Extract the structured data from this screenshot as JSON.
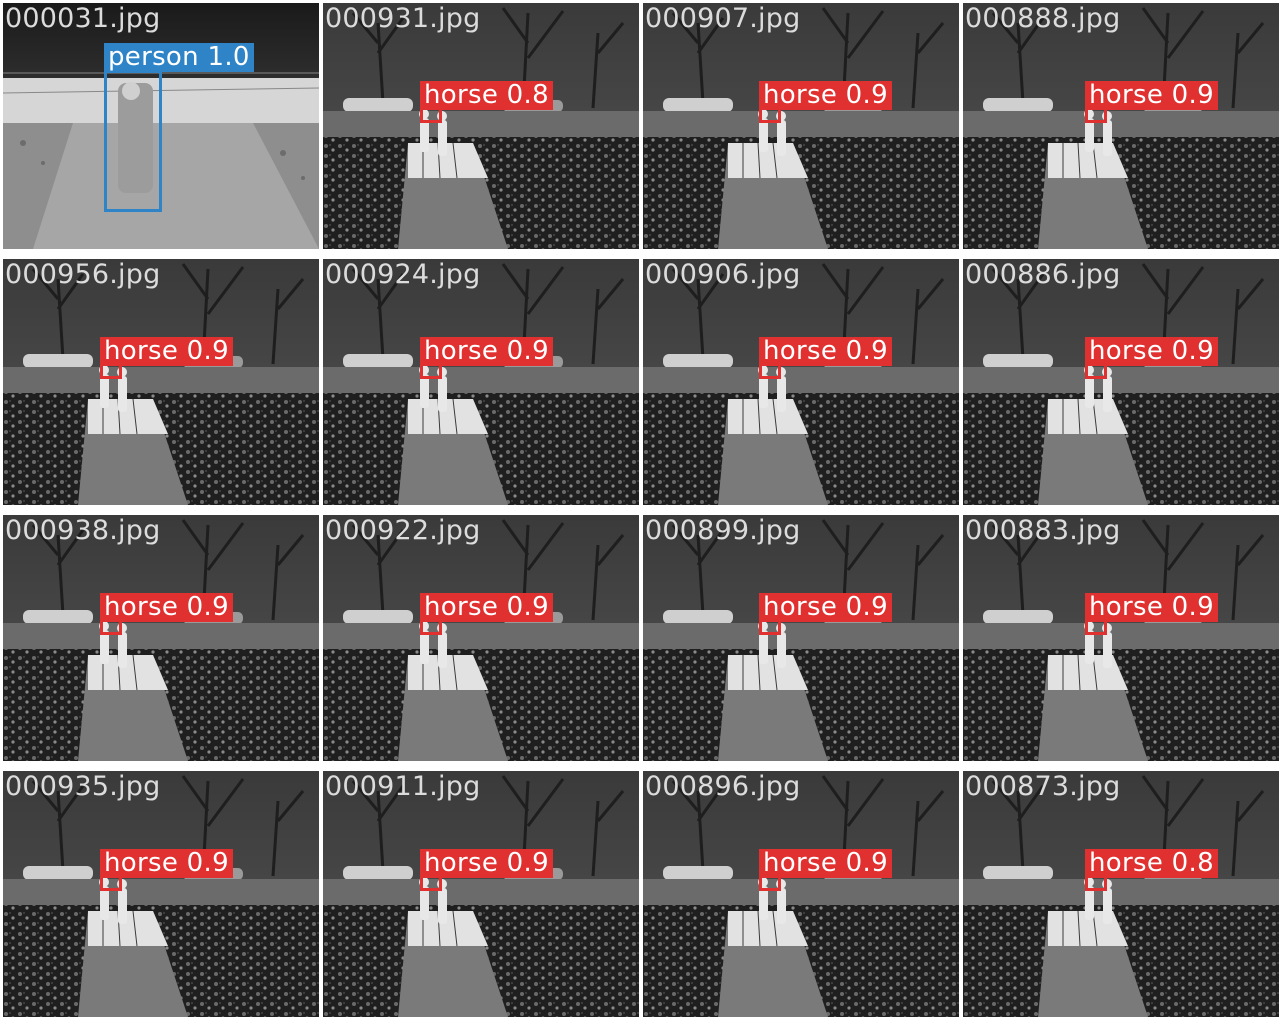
{
  "tiles": [
    {
      "file": "000031.jpg",
      "label": "person 1.0",
      "cls": "person",
      "scene": "night"
    },
    {
      "file": "000931.jpg",
      "label": "horse 0.8",
      "cls": "horse",
      "scene": "walkway",
      "people_x": 0.32
    },
    {
      "file": "000907.jpg",
      "label": "horse 0.9",
      "cls": "horse",
      "scene": "walkway",
      "people_x": 0.38
    },
    {
      "file": "000888.jpg",
      "label": "horse 0.9",
      "cls": "horse",
      "scene": "walkway",
      "people_x": 0.4
    },
    {
      "file": "000956.jpg",
      "label": "horse 0.9",
      "cls": "horse",
      "scene": "walkway",
      "people_x": 0.32
    },
    {
      "file": "000924.jpg",
      "label": "horse 0.9",
      "cls": "horse",
      "scene": "walkway",
      "people_x": 0.32
    },
    {
      "file": "000906.jpg",
      "label": "horse 0.9",
      "cls": "horse",
      "scene": "walkway",
      "people_x": 0.38
    },
    {
      "file": "000886.jpg",
      "label": "horse 0.9",
      "cls": "horse",
      "scene": "walkway",
      "people_x": 0.4
    },
    {
      "file": "000938.jpg",
      "label": "horse 0.9",
      "cls": "horse",
      "scene": "walkway",
      "people_x": 0.32
    },
    {
      "file": "000922.jpg",
      "label": "horse 0.9",
      "cls": "horse",
      "scene": "walkway",
      "people_x": 0.32
    },
    {
      "file": "000899.jpg",
      "label": "horse 0.9",
      "cls": "horse",
      "scene": "walkway",
      "people_x": 0.38
    },
    {
      "file": "000883.jpg",
      "label": "horse 0.9",
      "cls": "horse",
      "scene": "walkway",
      "people_x": 0.4
    },
    {
      "file": "000935.jpg",
      "label": "horse 0.9",
      "cls": "horse",
      "scene": "walkway",
      "people_x": 0.32
    },
    {
      "file": "000911.jpg",
      "label": "horse 0.9",
      "cls": "horse",
      "scene": "walkway",
      "people_x": 0.32
    },
    {
      "file": "000896.jpg",
      "label": "horse 0.9",
      "cls": "horse",
      "scene": "walkway",
      "people_x": 0.38
    },
    {
      "file": "000873.jpg",
      "label": "horse 0.8",
      "cls": "horse",
      "scene": "walkway",
      "people_x": 0.4
    }
  ],
  "colors": {
    "person_box": "#2f84c8",
    "horse_box": "#e03030",
    "filename_text": "#dcdcdc"
  }
}
